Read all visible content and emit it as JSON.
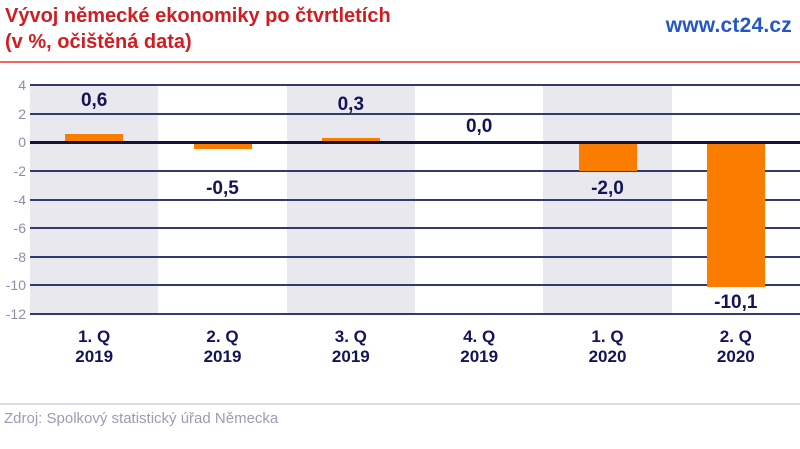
{
  "header": {
    "title_line1": "Vývoj německé ekonomiky po čtvrtletích",
    "title_line2": "(v %, očištěná data)",
    "title_color": "#d11c22",
    "brand": "www.ct24.cz",
    "brand_color": "#2356c8"
  },
  "chart_data": {
    "type": "bar",
    "title": "Vývoj německé ekonomiky po čtvrtletích (v %, očištěná data)",
    "categories": [
      {
        "quarter": "1. Q",
        "year": "2019"
      },
      {
        "quarter": "2. Q",
        "year": "2019"
      },
      {
        "quarter": "3. Q",
        "year": "2019"
      },
      {
        "quarter": "4. Q",
        "year": "2019"
      },
      {
        "quarter": "1. Q",
        "year": "2020"
      },
      {
        "quarter": "2. Q",
        "year": "2020"
      }
    ],
    "values": [
      0.6,
      -0.5,
      0.3,
      0.0,
      -2.0,
      -10.1
    ],
    "value_labels": [
      "0,6",
      "-0,5",
      "0,3",
      "0,0",
      "-2,0",
      "-10,1"
    ],
    "unit": "%",
    "ylim": [
      -12,
      4
    ],
    "yticks": [
      4,
      2,
      0,
      -2,
      -4,
      -6,
      -8,
      -10,
      -12
    ],
    "grid": true,
    "legend": "none",
    "bar_color": "#fa7d00",
    "band_color": "#e8e8ee",
    "grid_color": "#333a6d"
  },
  "footer": {
    "source": "Zdroj: Spolkový statistický úřad Německa"
  }
}
